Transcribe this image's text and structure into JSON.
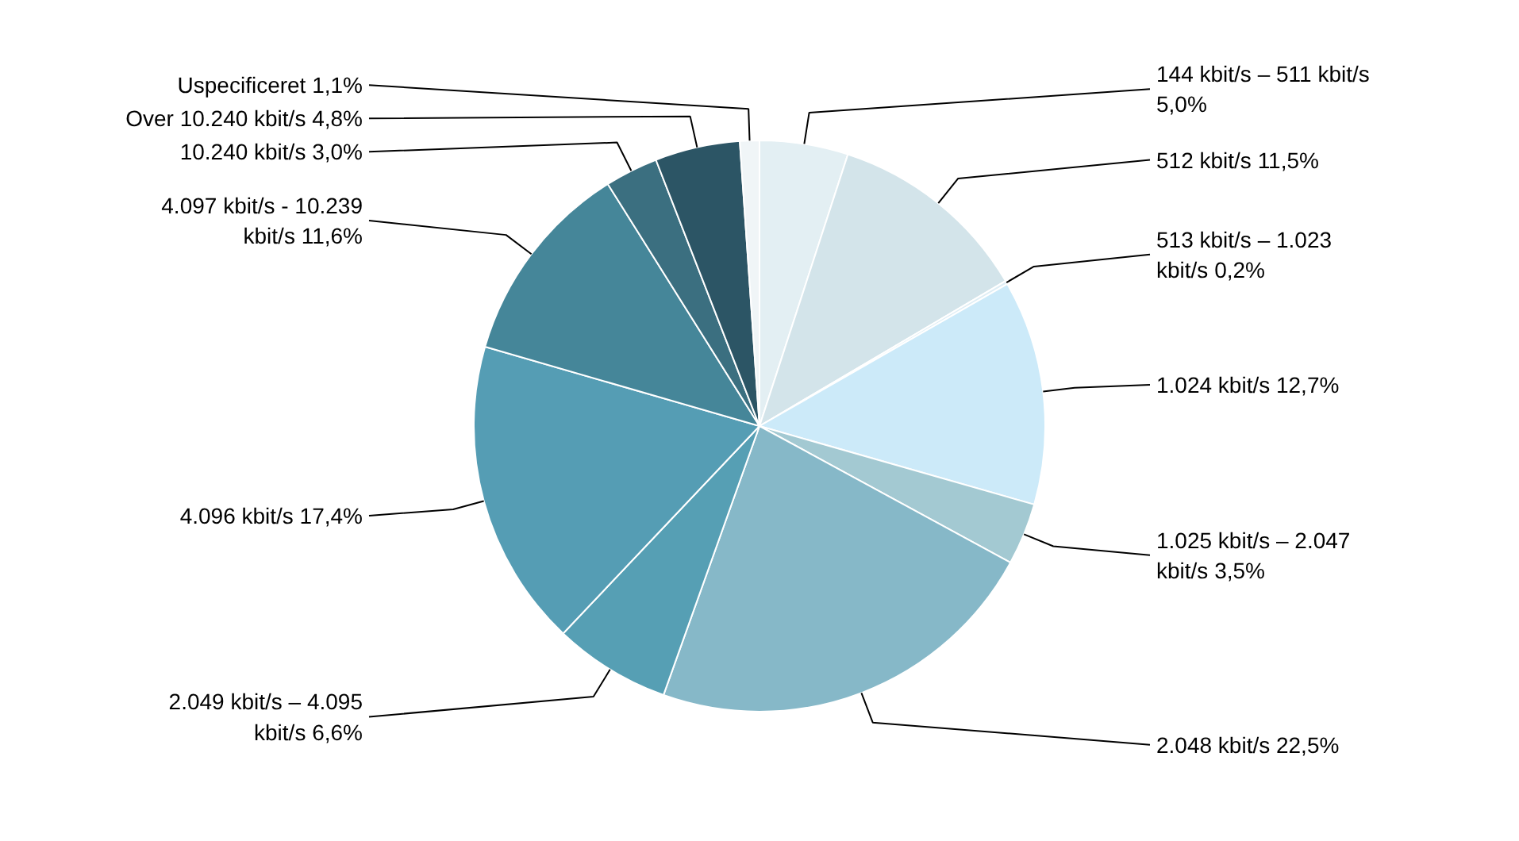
{
  "chart_data": {
    "type": "pie",
    "categories": [
      "144 kbit/s – 511 kbit/s",
      "512 kbit/s",
      "513 kbit/s – 1.023 kbit/s",
      "1.024 kbit/s",
      "1.025 kbit/s – 2.047 kbit/s",
      "2.048 kbit/s",
      "2.049 kbit/s – 4.095 kbit/s",
      "4.096 kbit/s",
      "4.097 kbit/s - 10.239 kbit/s",
      "10.240 kbit/s",
      "Over 10.240 kbit/s",
      "Uspecificeret"
    ],
    "values": [
      5.0,
      11.5,
      0.2,
      12.7,
      3.5,
      22.5,
      6.6,
      17.4,
      11.6,
      3.0,
      4.8,
      1.1
    ],
    "value_labels": [
      "5,0%",
      "11,5%",
      "0,2%",
      "12,7%",
      "3,5%",
      "22,5%",
      "6,6%",
      "17,4%",
      "11,6%",
      "3,0%",
      "4,8%",
      "1,1%"
    ],
    "colors": [
      "#e3eff3",
      "#d3e4ea",
      "#dfeef5",
      "#cceaf9",
      "#a3c9d2",
      "#86b8c8",
      "#569fb4",
      "#559db4",
      "#458699",
      "#3b6f80",
      "#2c5565",
      "#f0f5f7"
    ]
  }
}
